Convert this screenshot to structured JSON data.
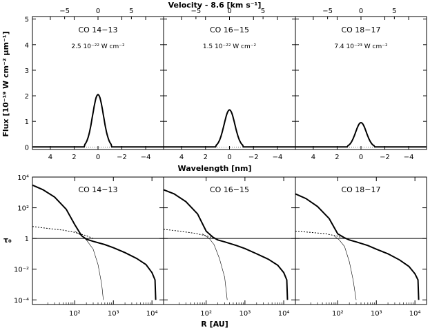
{
  "chart_data": [
    {
      "type": "line",
      "panel": "top-row",
      "xlabel": "Wavelength [nm]",
      "top_xlabel": "Velocity - 8.6 [km s⁻¹]",
      "ylabel": "Flux [10⁻¹⁹ W cm⁻² μm⁻¹]",
      "xlim": [
        5.5,
        -5.5
      ],
      "ylim": [
        -0.1,
        5.1
      ],
      "xticks": [
        4,
        2,
        0,
        -2,
        -4
      ],
      "xtick_labels": [
        "4",
        "2",
        "0",
        "−2",
        "−4"
      ],
      "yticks": [
        0,
        1,
        2,
        3,
        4,
        5
      ],
      "ytick_labels": [
        "0",
        "1",
        "2",
        "3",
        "4",
        "5"
      ],
      "top_ticks": [
        -5,
        0,
        5
      ],
      "top_tick_labels": [
        "−5",
        "0",
        "5"
      ],
      "top_tick_positions_nm": [
        2.8,
        0,
        -2.8
      ],
      "panels": [
        {
          "name": "CO 14−13",
          "flux": "2.5 10⁻²² W cm⁻²",
          "peak": 2.05,
          "sigma_nm": 0.45
        },
        {
          "name": "CO 16−15",
          "flux": "1.5 10⁻²² W cm⁻²",
          "peak": 1.45,
          "sigma_nm": 0.45
        },
        {
          "name": "CO 18−17",
          "flux": "7.4 10⁻²³ W cm⁻²",
          "peak": 0.95,
          "sigma_nm": 0.45
        }
      ]
    },
    {
      "type": "line",
      "panel": "bottom-row",
      "xlabel": "R [AU]",
      "ylabel": "τ₀",
      "xscale": "log",
      "yscale": "log",
      "xlim": [
        8,
        20000
      ],
      "ylim": [
        5e-05,
        10000
      ],
      "xticks": [
        100,
        1000,
        10000
      ],
      "xtick_labels": [
        "10²",
        "10³",
        "10⁴"
      ],
      "yticks": [
        0.0001,
        0.01,
        1,
        100,
        10000
      ],
      "ytick_labels": [
        "10⁻⁴",
        "10⁻²",
        "1",
        "10²",
        "10⁴"
      ],
      "reference_line": 1,
      "panels": [
        {
          "name": "CO 14−13",
          "thick": [
            [
              8,
              3000
            ],
            [
              15,
              1500
            ],
            [
              30,
              500
            ],
            [
              60,
              80
            ],
            [
              100,
              8
            ],
            [
              150,
              1.5
            ],
            [
              200,
              0.9
            ],
            [
              300,
              0.65
            ],
            [
              600,
              0.4
            ],
            [
              1000,
              0.25
            ],
            [
              2000,
              0.12
            ],
            [
              4000,
              0.05
            ],
            [
              7000,
              0.02
            ],
            [
              10000,
              0.006
            ],
            [
              12000,
              0.002
            ],
            [
              12500,
              0.0001
            ]
          ],
          "dotted": [
            [
              8,
              6
            ],
            [
              20,
              4.5
            ],
            [
              50,
              3.5
            ],
            [
              100,
              2.5
            ],
            [
              200,
              1.5
            ],
            [
              300,
              1
            ]
          ],
          "thin": [
            [
              100,
              3
            ],
            [
              150,
              1.5
            ],
            [
              200,
              0.8
            ],
            [
              300,
              0.2
            ],
            [
              400,
              0.02
            ],
            [
              500,
              0.001
            ],
            [
              550,
              0.0001
            ]
          ]
        },
        {
          "name": "CO 16−15",
          "thick": [
            [
              8,
              1500
            ],
            [
              15,
              800
            ],
            [
              30,
              250
            ],
            [
              60,
              40
            ],
            [
              100,
              3
            ],
            [
              150,
              1.2
            ],
            [
              200,
              0.8
            ],
            [
              300,
              0.6
            ],
            [
              600,
              0.35
            ],
            [
              1000,
              0.22
            ],
            [
              2000,
              0.1
            ],
            [
              4000,
              0.045
            ],
            [
              7000,
              0.018
            ],
            [
              10000,
              0.006
            ],
            [
              12000,
              0.002
            ],
            [
              12500,
              0.0001
            ]
          ],
          "dotted": [
            [
              8,
              4
            ],
            [
              20,
              3
            ],
            [
              50,
              2.2
            ],
            [
              100,
              1.5
            ],
            [
              150,
              1.1
            ]
          ],
          "thin": [
            [
              80,
              2
            ],
            [
              120,
              1
            ],
            [
              160,
              0.4
            ],
            [
              220,
              0.05
            ],
            [
              300,
              0.003
            ],
            [
              350,
              0.0001
            ]
          ]
        },
        {
          "name": "CO 18−17",
          "thick": [
            [
              8,
              800
            ],
            [
              15,
              400
            ],
            [
              30,
              120
            ],
            [
              60,
              20
            ],
            [
              100,
              2
            ],
            [
              150,
              1.1
            ],
            [
              200,
              0.8
            ],
            [
              300,
              0.6
            ],
            [
              600,
              0.35
            ],
            [
              1000,
              0.2
            ],
            [
              2000,
              0.1
            ],
            [
              4000,
              0.04
            ],
            [
              7000,
              0.015
            ],
            [
              10000,
              0.005
            ],
            [
              12000,
              0.002
            ],
            [
              12500,
              0.0001
            ]
          ],
          "dotted": [
            [
              8,
              3
            ],
            [
              20,
              2.5
            ],
            [
              50,
              2
            ],
            [
              100,
              1.4
            ],
            [
              130,
              1.1
            ]
          ],
          "thin": [
            [
              80,
              1.5
            ],
            [
              110,
              0.8
            ],
            [
              150,
              0.3
            ],
            [
              200,
              0.03
            ],
            [
              250,
              0.002
            ],
            [
              300,
              0.0001
            ]
          ]
        }
      ]
    }
  ]
}
